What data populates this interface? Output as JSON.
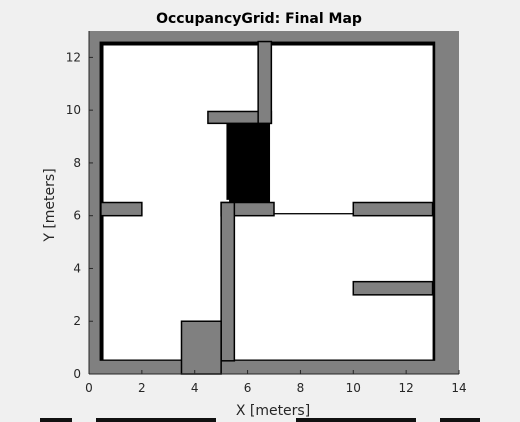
{
  "window": {
    "background": "#f0f0f0"
  },
  "chart_data": {
    "type": "heatmap",
    "title": "OccupancyGrid: Final Map",
    "xlabel": "X [meters]",
    "ylabel": "Y [meters]",
    "xlim": [
      0,
      14
    ],
    "ylim": [
      0,
      13
    ],
    "xticks": [
      "0",
      "2",
      "4",
      "6",
      "8",
      "10",
      "12",
      "14"
    ],
    "yticks": [
      "0",
      "2",
      "4",
      "6",
      "8",
      "10",
      "12"
    ],
    "colors": {
      "unknown": "#808080",
      "free": "#ffffff",
      "occupied": "#000000"
    },
    "mapped_extent": {
      "x": [
        0.4,
        13.1
      ],
      "y": [
        0.5,
        12.6
      ]
    },
    "free_regions": [
      {
        "name": "left-open-area",
        "x": [
          0.55,
          4.6
        ],
        "y": [
          0.55,
          12.45
        ]
      },
      {
        "name": "upper-left-room",
        "x": [
          0.55,
          6.4
        ],
        "y": [
          9.5,
          12.45
        ]
      },
      {
        "name": "corridor-middle",
        "x": [
          0.55,
          5.2
        ],
        "y": [
          6.55,
          9.6
        ]
      },
      {
        "name": "upper-right-room",
        "x": [
          6.85,
          13.0
        ],
        "y": [
          6.5,
          12.45
        ]
      },
      {
        "name": "center-corridor",
        "x": [
          5.3,
          10.0
        ],
        "y": [
          6.1,
          6.5
        ]
      },
      {
        "name": "lower-right-room",
        "x": [
          5.5,
          13.0
        ],
        "y": [
          0.55,
          6.05
        ]
      },
      {
        "name": "mid-connector",
        "x": [
          2.0,
          5.3
        ],
        "y": [
          2.0,
          6.6
        ]
      }
    ],
    "occupied_blocks": [
      {
        "name": "left-wall-stub",
        "x": [
          0.45,
          2.0
        ],
        "y": [
          6.0,
          6.5
        ]
      },
      {
        "name": "center-block",
        "x": [
          5.0,
          7.0
        ],
        "y": [
          6.0,
          6.5
        ]
      },
      {
        "name": "center-pillar",
        "x": [
          5.0,
          5.5
        ],
        "y": [
          0.5,
          6.5
        ]
      },
      {
        "name": "upper-stub",
        "x": [
          4.5,
          6.9
        ],
        "y": [
          9.5,
          9.95
        ]
      },
      {
        "name": "upper-divider",
        "x": [
          6.4,
          6.9
        ],
        "y": [
          9.5,
          12.6
        ]
      },
      {
        "name": "right-stub-upper",
        "x": [
          10.0,
          13.0
        ],
        "y": [
          6.0,
          6.5
        ]
      },
      {
        "name": "right-stub-lower",
        "x": [
          10.0,
          13.0
        ],
        "y": [
          3.0,
          3.5
        ]
      },
      {
        "name": "bottom-block",
        "x": [
          3.5,
          5.0
        ],
        "y": [
          0.0,
          2.0
        ]
      }
    ]
  }
}
